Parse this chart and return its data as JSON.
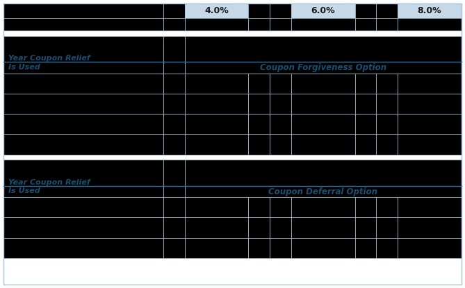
{
  "col_headers_row1": [
    "",
    "",
    "4.0%",
    "",
    "",
    "6.0%",
    "",
    "",
    "8.0%"
  ],
  "section1_label": "Year Coupon Relief\nIs Used",
  "section1_sublabel": "Coupon Forgiveness Option",
  "section2_label": "Year Coupon Relief\nIs Used",
  "section2_sublabel": "Coupon Deferral Option",
  "n_cols": 9,
  "n_data_rows_section1": 4,
  "n_data_rows_section2": 3,
  "header_bg_light": "#c5d9e8",
  "cell_bg_black": "#000000",
  "label_color": "#1a4f72",
  "divider_color": "#2e75a3",
  "grid_color": "#a8c4d4",
  "figsize": [
    6.69,
    4.15
  ],
  "dpi": 100,
  "col_widths_rel": [
    30,
    4,
    12,
    4,
    4,
    12,
    4,
    4,
    12
  ],
  "light_col_indices": [
    2,
    5,
    8
  ],
  "fig_bg": "#ffffff",
  "outer_border_color": "#a8c4d4"
}
